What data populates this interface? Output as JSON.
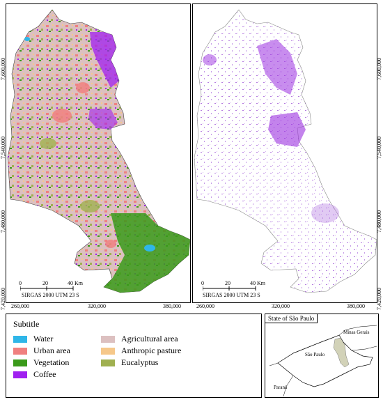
{
  "left_map": {
    "y_ticks": [
      "7,600,000",
      "7,540,000",
      "7,480,000",
      "7,420,000"
    ],
    "x_ticks": [
      "260,000",
      "320,000",
      "380,000"
    ],
    "scale": {
      "labels": [
        "0",
        "20",
        "40 Km"
      ]
    },
    "crs": "SIRGAS 2000  UTM  23 S"
  },
  "right_map": {
    "y_ticks": [
      "7,600,000",
      "7,540,000",
      "7,480,000",
      "7,420,000"
    ],
    "x_ticks": [
      "260,000",
      "320,000",
      "380,000"
    ],
    "scale": {
      "labels": [
        "0",
        "20",
        "40 Km"
      ]
    },
    "crs": "SIRGAS 2000  UTM  23 S"
  },
  "legend": {
    "title": "Subtitle",
    "items": [
      {
        "label": "Water",
        "color": "#2fb6e8"
      },
      {
        "label": "Urban area",
        "color": "#f08080"
      },
      {
        "label": "Vegetation",
        "color": "#3a9a1a"
      },
      {
        "label": "Coffee",
        "color": "#a020f0"
      },
      {
        "label": "Agricultural area",
        "color": "#dcc0c0"
      },
      {
        "label": "Anthropic pasture",
        "color": "#f6c88a"
      },
      {
        "label": "Eucalyptus",
        "color": "#a0b050"
      }
    ]
  },
  "inset": {
    "title": "State of São Paulo",
    "labels": {
      "mg": "Minas Gerais",
      "sp": "São Paulo",
      "pr": "Paraná"
    }
  }
}
